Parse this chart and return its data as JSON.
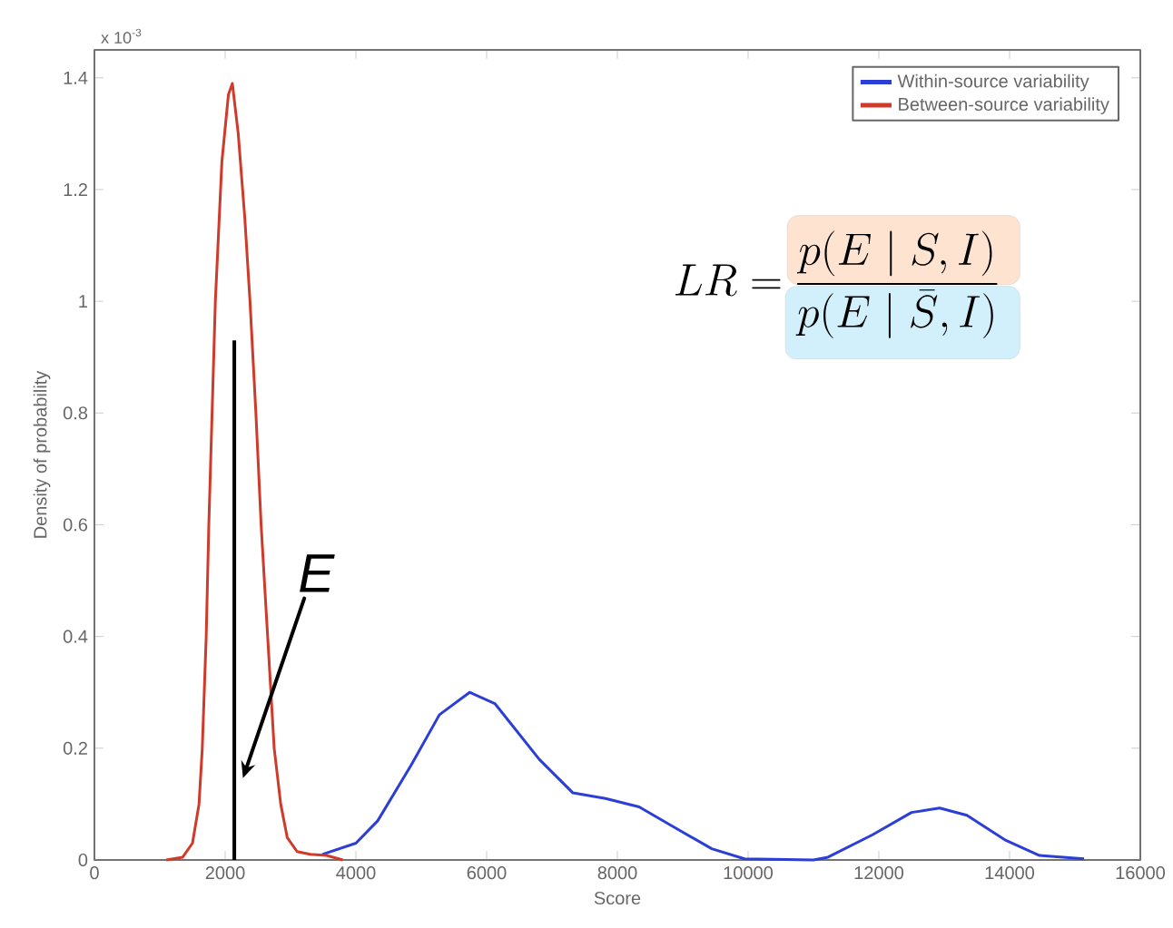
{
  "chart_data": {
    "type": "line",
    "xlabel": "Score",
    "ylabel": "Density of probability",
    "xlim": [
      0,
      16000
    ],
    "ylim": [
      0,
      1.45
    ],
    "xticks": [
      0,
      2000,
      4000,
      6000,
      8000,
      10000,
      12000,
      14000,
      16000
    ],
    "yticks": [
      0,
      0.2,
      0.4,
      0.6,
      0.8,
      1,
      1.2,
      1.4
    ],
    "legend": "top right",
    "grid": false,
    "series": [
      {
        "name": "Within-source variability",
        "color": "#2b3fd6",
        "x": [
          3486,
          4000,
          4333,
          4847,
          5278,
          5740,
          6125,
          6806,
          7320,
          7820,
          8333,
          8847,
          9444,
          9944,
          11000,
          11222,
          11903,
          12500,
          12930,
          13347,
          13944,
          14458,
          15139
        ],
        "values": [
          0.01,
          0.03,
          0.07,
          0.17,
          0.26,
          0.3,
          0.28,
          0.18,
          0.12,
          0.11,
          0.095,
          0.06,
          0.02,
          0.002,
          0,
          0.005,
          0.045,
          0.085,
          0.093,
          0.08,
          0.035,
          0.008,
          0.002
        ]
      },
      {
        "name": "Between-source variability",
        "color": "#d03a2a",
        "x": [
          1100,
          1350,
          1500,
          1600,
          1650,
          1710,
          1750,
          1850,
          1950,
          2050,
          2110,
          2200,
          2300,
          2380,
          2470,
          2550,
          2650,
          2750,
          2850,
          2950,
          3100,
          3300,
          3550,
          3800
        ],
        "values": [
          0,
          0.005,
          0.03,
          0.1,
          0.2,
          0.4,
          0.6,
          1.0,
          1.25,
          1.37,
          1.39,
          1.3,
          1.15,
          1.0,
          0.8,
          0.6,
          0.4,
          0.2,
          0.1,
          0.04,
          0.015,
          0.01,
          0.008,
          0
        ]
      },
      {
        "color": "#000000",
        "x": [
          2140,
          2140
        ],
        "values": [
          0,
          0.93
        ]
      }
    ],
    "annotations": [
      "LR = \\frac{p(E \\mid S, I)}{p(E \\mid \\bar{S}, I)}",
      "E",
      "x 10$^{-3}$"
    ]
  }
}
